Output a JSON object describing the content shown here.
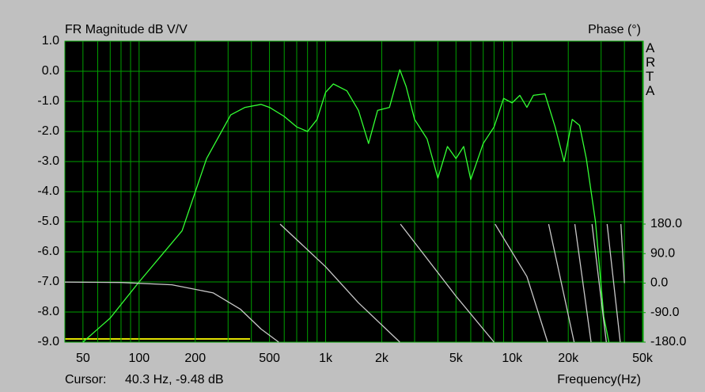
{
  "chart_data": {
    "type": "line",
    "title": "FR Magnitude dB V/V",
    "y2_label": "Phase (°)",
    "brand": "ARTA",
    "x_label": "Frequency(Hz)",
    "cursor_label": "Cursor:",
    "cursor_value": "40.3 Hz, -9.48 dB",
    "xscale": "log",
    "xlim": [
      40,
      50000
    ],
    "ylim": [
      -9,
      1
    ],
    "y2lim": [
      -180,
      738
    ],
    "grid": true,
    "grid_color": "#00a000",
    "xticks": [
      {
        "value": 50,
        "label": "50"
      },
      {
        "value": 100,
        "label": "100"
      },
      {
        "value": 200,
        "label": "200"
      },
      {
        "value": 500,
        "label": "500"
      },
      {
        "value": 1000,
        "label": "1k"
      },
      {
        "value": 2000,
        "label": "2k"
      },
      {
        "value": 5000,
        "label": "5k"
      },
      {
        "value": 10000,
        "label": "10k"
      },
      {
        "value": 20000,
        "label": "20k"
      },
      {
        "value": 50000,
        "label": "50k"
      }
    ],
    "xminor": [
      60,
      70,
      80,
      90,
      300,
      400,
      600,
      700,
      800,
      900,
      3000,
      4000,
      6000,
      7000,
      8000,
      9000,
      30000,
      40000
    ],
    "yticks": [
      {
        "value": 1,
        "label": "1.0"
      },
      {
        "value": 0,
        "label": "0.0"
      },
      {
        "value": -1,
        "label": "-1.0"
      },
      {
        "value": -2,
        "label": "-2.0"
      },
      {
        "value": -3,
        "label": "-3.0"
      },
      {
        "value": -4,
        "label": "-4.0"
      },
      {
        "value": -5,
        "label": "-5.0"
      },
      {
        "value": -6,
        "label": "-6.0"
      },
      {
        "value": -7,
        "label": "-7.0"
      },
      {
        "value": -8,
        "label": "-8.0"
      },
      {
        "value": -9,
        "label": "-9.0"
      }
    ],
    "y2ticks": [
      {
        "value": 180,
        "label": "180.0"
      },
      {
        "value": 90,
        "label": "90.0"
      },
      {
        "value": 0,
        "label": "0.0"
      },
      {
        "value": -90,
        "label": "-90.0"
      },
      {
        "value": -180,
        "label": "-180.0"
      }
    ],
    "series": [
      {
        "name": "FR Magnitude",
        "color": "#33ff33",
        "x": [
          50,
          70,
          100,
          170,
          230,
          310,
          370,
          450,
          500,
          600,
          700,
          800,
          900,
          1000,
          1100,
          1300,
          1500,
          1700,
          1900,
          2200,
          2500,
          2700,
          3000,
          3500,
          4000,
          4500,
          5000,
          5500,
          6000,
          7000,
          8000,
          9000,
          10000,
          11000,
          12000,
          13000,
          15000,
          17000,
          19000,
          21000,
          23000,
          25000,
          28000,
          31000,
          33000
        ],
        "values": [
          -9.0,
          -8.2,
          -7.0,
          -5.3,
          -2.9,
          -1.45,
          -1.2,
          -1.1,
          -1.2,
          -1.5,
          -1.85,
          -2.0,
          -1.6,
          -0.7,
          -0.42,
          -0.65,
          -1.3,
          -2.4,
          -1.3,
          -1.2,
          0.05,
          -0.5,
          -1.6,
          -2.25,
          -3.55,
          -2.5,
          -2.9,
          -2.5,
          -3.6,
          -2.4,
          -1.85,
          -0.9,
          -1.05,
          -0.8,
          -1.2,
          -0.8,
          -0.75,
          -1.85,
          -3.0,
          -1.6,
          -1.8,
          -2.9,
          -5.0,
          -8.15,
          -9.0
        ]
      },
      {
        "name": "Phase",
        "color": "#c8c8c8",
        "axis": "y2",
        "x": [
          40,
          80,
          150,
          250,
          350,
          450,
          560,
          560,
          570,
          1000,
          1500,
          2500,
          2500,
          2520,
          5000,
          8000,
          8000,
          8100,
          12000,
          15500,
          15500,
          15700,
          21500,
          21500,
          21700,
          26500,
          26500,
          26800,
          32000,
          32000,
          32300,
          38000,
          38000,
          38300,
          40000
        ],
        "values": [
          3,
          2,
          -5,
          -30,
          -80,
          -140,
          -180,
          null,
          180,
          50,
          -60,
          -180,
          null,
          180,
          -40,
          -180,
          null,
          180,
          20,
          -180,
          null,
          180,
          -180,
          null,
          180,
          -180,
          null,
          180,
          -180,
          null,
          180,
          -180,
          null,
          180,
          0
        ]
      }
    ]
  }
}
